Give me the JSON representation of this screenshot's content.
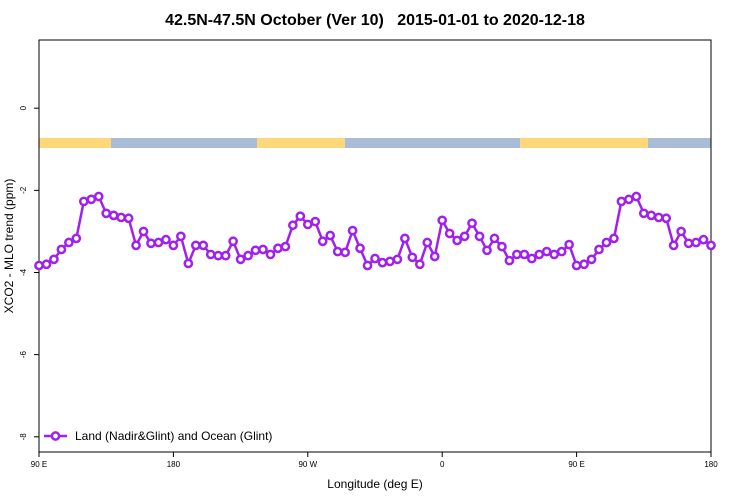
{
  "chart_data": {
    "type": "line",
    "title": "42.5N-47.5N October (Ver 10)   2015-01-01 to 2020-12-18",
    "x_label": "Longitude (deg E)",
    "y_label": "XCO2 - MLO trend (ppm)",
    "x": [
      90,
      95,
      100,
      105,
      110,
      115,
      120,
      125,
      130,
      135,
      140,
      145,
      150,
      155,
      160,
      165,
      170,
      175,
      180,
      185,
      190,
      195,
      200,
      205,
      210,
      215,
      220,
      225,
      230,
      235,
      240,
      245,
      250,
      255,
      260,
      265,
      270,
      275,
      280,
      285,
      290,
      295,
      300,
      305,
      310,
      315,
      320,
      325,
      330,
      335,
      340,
      345,
      350,
      355,
      360,
      365,
      370,
      375,
      380,
      385,
      390,
      395,
      400,
      405,
      410,
      415,
      420,
      425,
      430,
      435,
      440,
      445,
      450,
      455,
      460,
      465,
      470,
      475,
      480,
      485,
      490,
      495,
      500,
      505,
      510,
      515,
      520,
      525,
      530,
      535,
      540
    ],
    "series": [
      {
        "name": "Land (Nadir&Glint) and Ocean (Glint)",
        "color": "#a020f0",
        "values": [
          -3.83,
          -3.8,
          -3.68,
          -3.44,
          -3.27,
          -3.17,
          -2.27,
          -2.22,
          -2.15,
          -2.56,
          -2.61,
          -2.66,
          -2.68,
          -3.34,
          -3.0,
          -3.29,
          -3.27,
          -3.2,
          -3.34,
          -3.12,
          -3.78,
          -3.34,
          -3.34,
          -3.56,
          -3.59,
          -3.59,
          -3.24,
          -3.68,
          -3.59,
          -3.46,
          -3.44,
          -3.56,
          -3.41,
          -3.37,
          -2.85,
          -2.63,
          -2.83,
          -2.76,
          -3.24,
          -3.1,
          -3.49,
          -3.51,
          -2.98,
          -3.41,
          -3.83,
          -3.66,
          -3.76,
          -3.73,
          -3.68,
          -3.17,
          -3.63,
          -3.8,
          -3.27,
          -3.61,
          -2.73,
          -3.05,
          -3.22,
          -3.12,
          -2.8,
          -3.12,
          -3.46,
          -3.17,
          -3.37,
          -3.71,
          -3.56,
          -3.56,
          -3.66,
          -3.56,
          -3.49,
          -3.56,
          -3.49,
          -3.32,
          -3.83,
          -3.8,
          -3.68,
          -3.44,
          -3.27,
          -3.17,
          -2.27,
          -2.22,
          -2.15,
          -2.56,
          -2.61,
          -2.66,
          -2.68,
          -3.34,
          -3.0,
          -3.29,
          -3.27,
          -3.2,
          -3.34
        ]
      }
    ],
    "xlim": [
      90,
      540
    ],
    "xticks": [
      {
        "value": 90,
        "label": "90 E"
      },
      180,
      {
        "value": 270,
        "label": "90 W"
      },
      {
        "value": 360,
        "label": "0"
      },
      {
        "value": 450,
        "label": "90 E"
      },
      {
        "value": 540,
        "label": "180"
      }
    ],
    "ylim": [
      -8.37,
      1.66
    ],
    "yticks": [
      0,
      -2,
      -4,
      -6,
      -8
    ],
    "legend": "bottom-left"
  }
}
